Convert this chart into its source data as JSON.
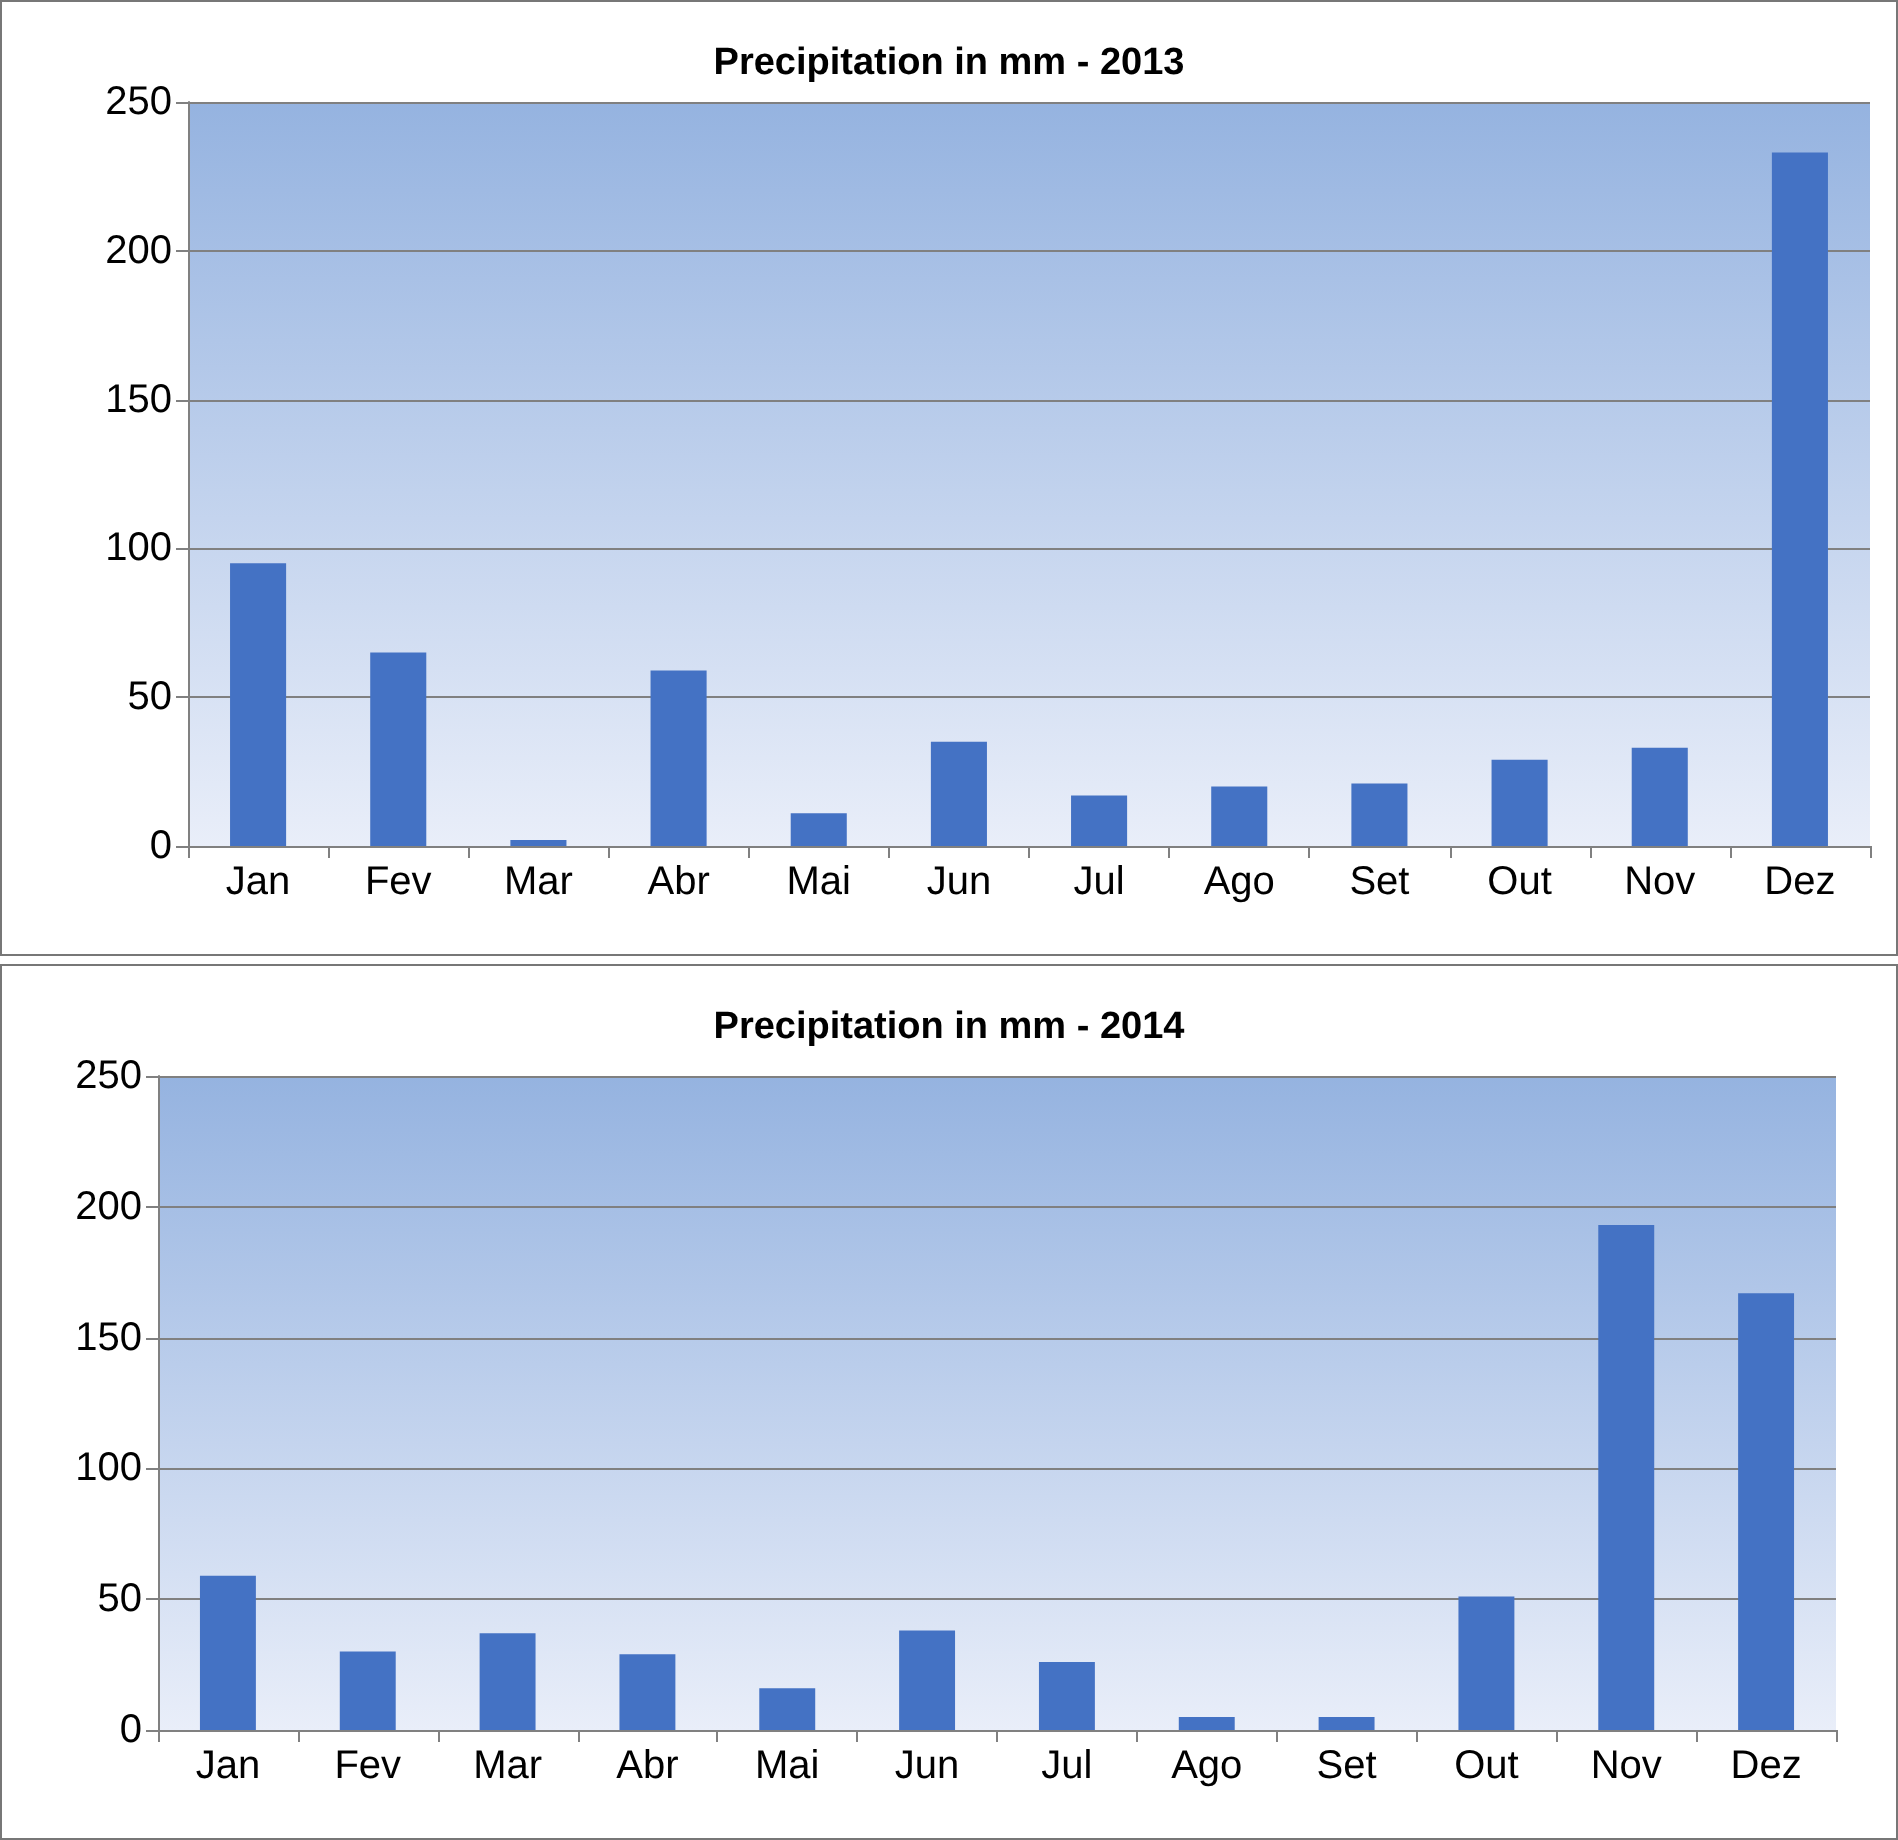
{
  "chart_data": [
    {
      "type": "bar",
      "title": "Precipitation in mm - 2013",
      "categories": [
        "Jan",
        "Fev",
        "Mar",
        "Abr",
        "Mai",
        "Jun",
        "Jul",
        "Ago",
        "Set",
        "Out",
        "Nov",
        "Dez"
      ],
      "values": [
        95,
        65,
        2,
        59,
        11,
        35,
        17,
        20,
        21,
        29,
        33,
        233
      ],
      "color": "#4472c4",
      "ylim": [
        0,
        250
      ],
      "yticks": [
        0,
        50,
        100,
        150,
        200,
        250
      ],
      "grid": "y"
    },
    {
      "type": "bar",
      "title": "Precipitation in mm - 2014",
      "categories": [
        "Jan",
        "Fev",
        "Mar",
        "Abr",
        "Mai",
        "Jun",
        "Jul",
        "Ago",
        "Set",
        "Out",
        "Nov",
        "Dez"
      ],
      "values": [
        59,
        30,
        37,
        29,
        16,
        38,
        26,
        5,
        5,
        51,
        193,
        167
      ],
      "color": "#4472c4",
      "ylim": [
        0,
        250
      ],
      "yticks": [
        0,
        50,
        100,
        150,
        200,
        250
      ],
      "grid": "y"
    }
  ]
}
